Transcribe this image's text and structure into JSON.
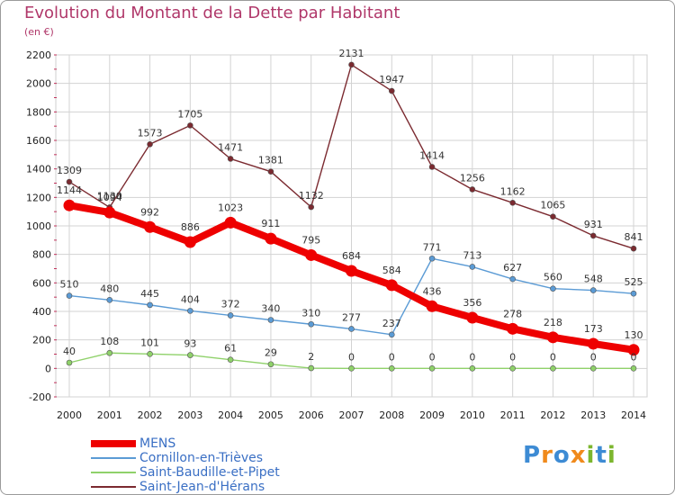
{
  "header": {
    "title": "Evolution du Montant de la Dette par Habitant",
    "unit": "(en €)"
  },
  "logo": {
    "text": "Proxiti",
    "letters": [
      "P",
      "r",
      "o",
      "x",
      "i",
      "t",
      "i"
    ]
  },
  "colors": {
    "title": "#b0386a",
    "grid": "#d3d3d3",
    "axis_tick": "#c0305a",
    "logo": [
      "#3d8bd4",
      "#f08a1c",
      "#3d8bd4",
      "#f08a1c",
      "#7cb62e",
      "#3d8bd4",
      "#7cb62e"
    ]
  },
  "chart_data": {
    "type": "line",
    "title": "Evolution du Montant de la Dette par Habitant",
    "ylabel": "(en €)",
    "xlabel": "",
    "ylim": [
      -200,
      2200
    ],
    "yticks": [
      -200,
      0,
      200,
      400,
      600,
      800,
      1000,
      1200,
      1400,
      1600,
      1800,
      2000,
      2200
    ],
    "grid": true,
    "legend_position": "bottom-left",
    "categories": [
      "2000",
      "2001",
      "2002",
      "2003",
      "2004",
      "2005",
      "2006",
      "2007",
      "2008",
      "2009",
      "2010",
      "2011",
      "2012",
      "2013",
      "2014"
    ],
    "series": [
      {
        "name": "MENS",
        "color": "#ee0000",
        "emphasis": true,
        "values": [
          1144,
          1094,
          992,
          886,
          1023,
          911,
          795,
          684,
          584,
          436,
          356,
          278,
          218,
          173,
          130
        ]
      },
      {
        "name": "Cornillon-en-Trièves",
        "color": "#5b9bd5",
        "values": [
          510,
          480,
          445,
          404,
          372,
          340,
          310,
          277,
          237,
          771,
          713,
          627,
          560,
          548,
          525
        ]
      },
      {
        "name": "Saint-Baudille-et-Pipet",
        "color": "#8fd16a",
        "values": [
          40,
          108,
          101,
          93,
          61,
          29,
          2,
          0,
          0,
          0,
          0,
          0,
          0,
          0,
          0
        ]
      },
      {
        "name": "Saint-Jean-d'Hérans",
        "color": "#7b2a30",
        "values": [
          1309,
          1130,
          1573,
          1705,
          1471,
          1381,
          1132,
          2131,
          1947,
          1414,
          1256,
          1162,
          1065,
          931,
          841
        ]
      }
    ]
  }
}
